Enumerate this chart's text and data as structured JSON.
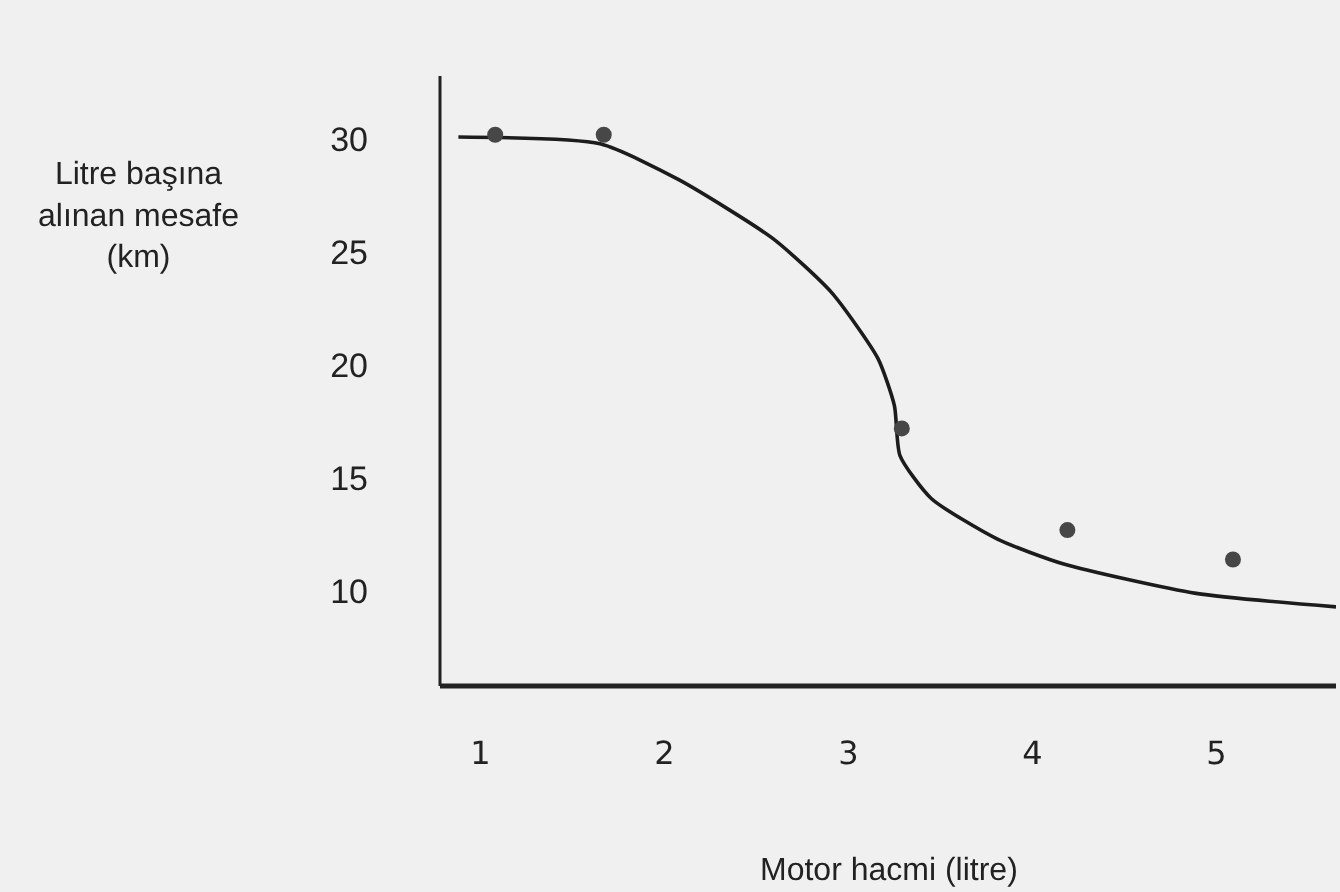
{
  "chart_data": {
    "type": "scatter",
    "xlabel": "Motor hacmi (litre)",
    "ylabel": "Litre başına\nalınan mesafe\n(km)",
    "xlim": [
      0.78,
      5.65
    ],
    "ylim": [
      5.8,
      32.8
    ],
    "xticks": [
      1,
      2,
      3,
      4,
      5
    ],
    "yticks": [
      10,
      15,
      20,
      25,
      30
    ],
    "grid": false,
    "series": [
      {
        "type": "line",
        "color": "#1c1c1c",
        "marker": "none",
        "line_style": "solid",
        "x": [
          0.88,
          1.65,
          2.08,
          2.59,
          2.91,
          3.16,
          3.25,
          3.28,
          3.45,
          3.81,
          4.17,
          4.89,
          5.65
        ],
        "values": [
          30.1,
          29.8,
          28.2,
          25.6,
          23.2,
          20.3,
          18.2,
          16.0,
          14.1,
          12.3,
          11.2,
          9.9,
          9.3
        ]
      },
      {
        "color": "#474747",
        "marker": "circle",
        "x": [
          1.08,
          1.67,
          3.29,
          4.19,
          5.09
        ],
        "values": [
          30.2,
          30.2,
          17.2,
          12.7,
          11.4
        ]
      }
    ]
  }
}
